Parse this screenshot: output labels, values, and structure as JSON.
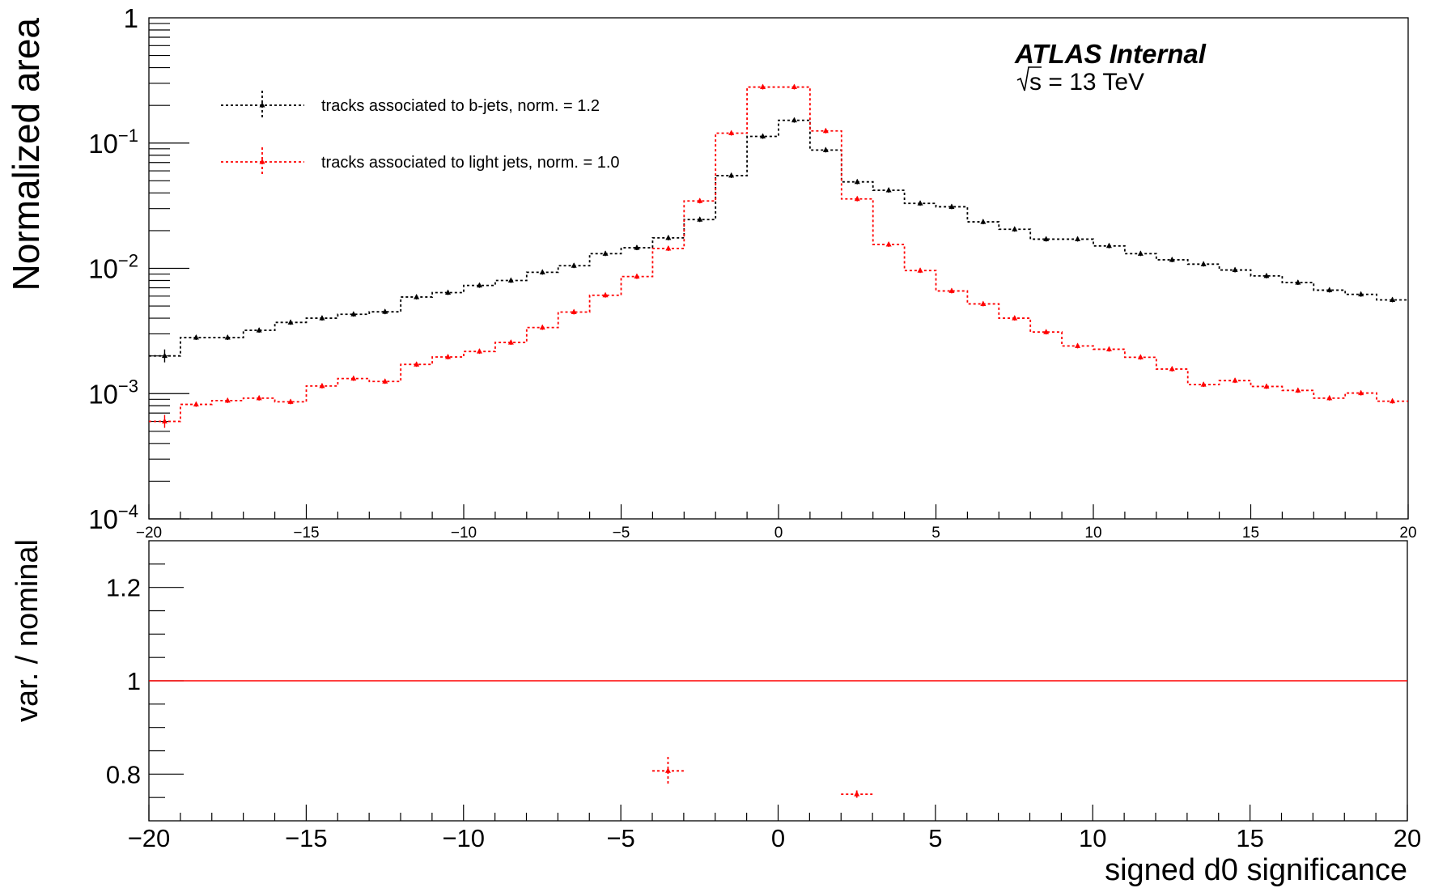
{
  "chart_data": [
    {
      "type": "line",
      "ylabel": "Normalized area",
      "yscale": "log",
      "ylim": [
        0.0001,
        1
      ],
      "xlim": [
        -20,
        20
      ],
      "x_ticks": [
        "−20",
        "−15",
        "−10",
        "−5",
        "0",
        "5",
        "10",
        "15",
        "20"
      ],
      "y_ticks": [
        {
          "base": "10",
          "exp": "−4"
        },
        {
          "base": "10",
          "exp": "−3"
        },
        {
          "base": "10",
          "exp": "−2"
        },
        {
          "base": "10",
          "exp": "−1"
        },
        {
          "base": "1",
          "exp": ""
        }
      ],
      "annotation_title": "ATLAS Internal",
      "annotation_energy": "s = 13 TeV",
      "legend_position": "top-left",
      "x": [
        -19.5,
        -18.5,
        -17.5,
        -16.5,
        -15.5,
        -14.5,
        -13.5,
        -12.5,
        -11.5,
        -10.5,
        -9.5,
        -8.5,
        -7.5,
        -6.5,
        -5.5,
        -4.5,
        -3.5,
        -2.5,
        -1.5,
        -0.5,
        0.5,
        1.5,
        2.5,
        3.5,
        4.5,
        5.5,
        6.5,
        7.5,
        8.5,
        9.5,
        10.5,
        11.5,
        12.5,
        13.5,
        14.5,
        15.5,
        16.5,
        17.5,
        18.5,
        19.5
      ],
      "series": [
        {
          "name": "tracks associated to b-jets, norm. = 1.2",
          "color": "#000000",
          "values": [
            0.002,
            0.0028,
            0.0028,
            0.0032,
            0.0037,
            0.004,
            0.0043,
            0.0045,
            0.0059,
            0.0064,
            0.0073,
            0.008,
            0.0093,
            0.0105,
            0.0131,
            0.0146,
            0.0175,
            0.0245,
            0.055,
            0.113,
            0.152,
            0.088,
            0.049,
            0.042,
            0.033,
            0.031,
            0.0235,
            0.0205,
            0.0171,
            0.0171,
            0.0151,
            0.0131,
            0.0117,
            0.0108,
            0.0097,
            0.0087,
            0.0077,
            0.0067,
            0.0062,
            0.0056
          ]
        },
        {
          "name": "tracks associated to light jets, norm. = 1.0",
          "color": "#ff0000",
          "values": [
            0.0006,
            0.00082,
            0.00088,
            0.00092,
            0.00086,
            0.00115,
            0.00132,
            0.00125,
            0.00171,
            0.00196,
            0.00217,
            0.00256,
            0.00337,
            0.00448,
            0.0061,
            0.0086,
            0.0144,
            0.0345,
            0.12,
            0.28,
            0.28,
            0.125,
            0.0358,
            0.0155,
            0.0096,
            0.0066,
            0.0052,
            0.004,
            0.0031,
            0.0024,
            0.00226,
            0.00195,
            0.00157,
            0.00118,
            0.00127,
            0.00114,
            0.00106,
            0.00092,
            0.00101,
            0.00087
          ]
        }
      ]
    },
    {
      "type": "scatter",
      "xlabel": "signed d0 significance",
      "ylabel": "var. / nominal",
      "xlim": [
        -20,
        20
      ],
      "ylim": [
        0.7,
        1.3
      ],
      "x_ticks": [
        "−20",
        "−15",
        "−10",
        "−5",
        "0",
        "5",
        "10",
        "15",
        "20"
      ],
      "y_ticks": [
        "0.8",
        "1",
        "1.2"
      ],
      "reference_line": {
        "y": 1,
        "color": "#ff0000"
      },
      "series": [
        {
          "color": "#ff0000",
          "points": [
            {
              "x": -3.5,
              "y": 0.807,
              "yerr": 0.03
            },
            {
              "x": 2.5,
              "y": 0.757,
              "yerr": 0.008
            }
          ]
        }
      ]
    }
  ]
}
